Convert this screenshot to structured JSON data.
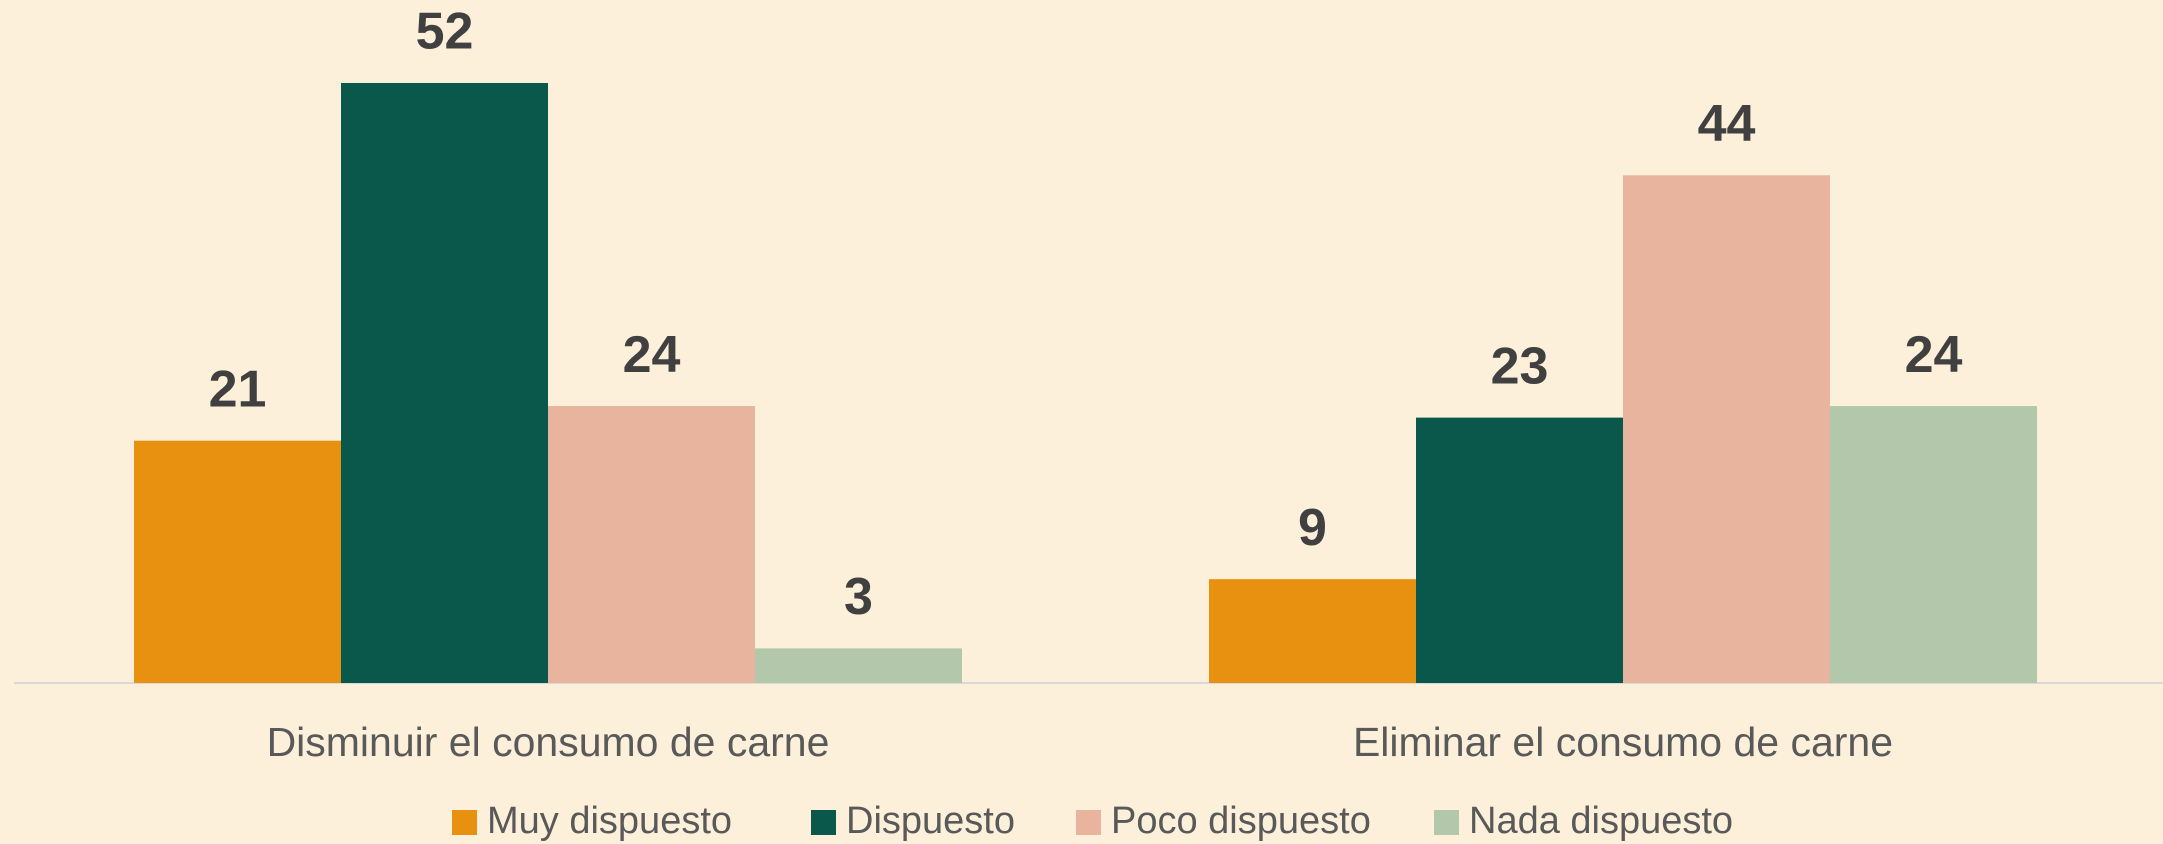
{
  "chart_data": {
    "type": "bar",
    "categories": [
      "Disminuir el consumo de carne",
      "Eliminar el consumo de carne"
    ],
    "series": [
      {
        "name": "Muy dispuesto",
        "color": "#E8900F",
        "values": [
          21,
          9
        ]
      },
      {
        "name": "Dispuesto",
        "color": "#0A574B",
        "values": [
          52,
          23
        ]
      },
      {
        "name": "Poco dispuesto",
        "color": "#E8B49D",
        "values": [
          24,
          44
        ]
      },
      {
        "name": "Nada dispuesto",
        "color": "#B3C8AA",
        "values": [
          3,
          24
        ]
      }
    ],
    "legend": "bottom"
  }
}
